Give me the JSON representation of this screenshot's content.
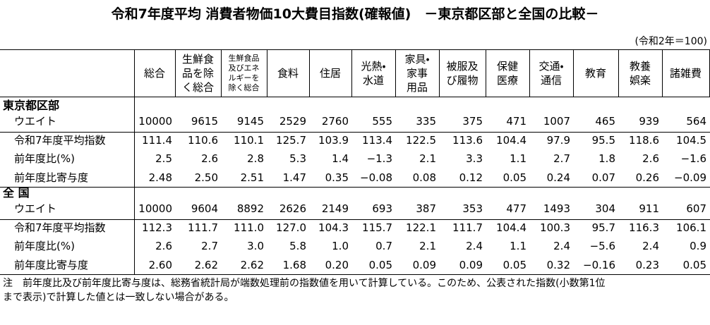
{
  "title": "令和7年度平均 消費者物価10大費目指数(確報値)　－東京都区部と全国の比較－",
  "unit_note": "(令和2年＝100)",
  "table": {
    "columns": [
      [
        "総合"
      ],
      [
        "生鮮食",
        "品を除",
        "く総合"
      ],
      [
        "生鮮食品",
        "及びエネ",
        "ルギーを",
        "除く総合"
      ],
      [
        "食料"
      ],
      [
        "住居"
      ],
      [
        "光熱・",
        "水道"
      ],
      [
        "家具・",
        "家事",
        "用品"
      ],
      [
        "被服及",
        "び履物"
      ],
      [
        "保健",
        "医療"
      ],
      [
        "交通・",
        "通信"
      ],
      [
        "教育"
      ],
      [
        "教養",
        "娯楽"
      ],
      [
        "諸雑費"
      ]
    ],
    "sections": [
      {
        "name": "東京都区部",
        "rows": [
          {
            "label": "ウエイト",
            "values": [
              "10000",
              "9615",
              "9145",
              "2529",
              "2760",
              "555",
              "335",
              "375",
              "471",
              "1007",
              "465",
              "939",
              "564"
            ]
          },
          {
            "label": "令和7年度平均指数",
            "values": [
              "111.4",
              "110.6",
              "110.1",
              "125.7",
              "103.9",
              "113.4",
              "122.5",
              "113.6",
              "104.4",
              "97.9",
              "95.5",
              "118.6",
              "104.5"
            ]
          },
          {
            "label": "前年度比(%)",
            "values": [
              "2.5",
              "2.6",
              "2.8",
              "5.3",
              "1.4",
              "−1.3",
              "2.1",
              "3.3",
              "1.1",
              "2.7",
              "1.8",
              "2.6",
              "−1.6"
            ]
          },
          {
            "label": "前年度比寄与度",
            "values": [
              "2.48",
              "2.50",
              "2.51",
              "1.47",
              "0.35",
              "−0.08",
              "0.08",
              "0.12",
              "0.05",
              "0.24",
              "0.07",
              "0.26",
              "−0.09"
            ]
          }
        ]
      },
      {
        "name": "全 国",
        "rows": [
          {
            "label": "ウエイト",
            "values": [
              "10000",
              "9604",
              "8892",
              "2626",
              "2149",
              "693",
              "387",
              "353",
              "477",
              "1493",
              "304",
              "911",
              "607"
            ]
          },
          {
            "label": "令和7年度平均指数",
            "values": [
              "112.3",
              "111.7",
              "111.0",
              "127.0",
              "104.3",
              "115.7",
              "122.1",
              "111.7",
              "104.4",
              "100.3",
              "95.7",
              "116.3",
              "106.1"
            ]
          },
          {
            "label": "前年度比(%)",
            "values": [
              "2.6",
              "2.7",
              "3.0",
              "5.8",
              "1.0",
              "0.7",
              "2.1",
              "2.4",
              "1.1",
              "2.4",
              "−5.6",
              "2.4",
              "0.9"
            ]
          },
          {
            "label": "前年度比寄与度",
            "values": [
              "2.60",
              "2.62",
              "2.62",
              "1.68",
              "0.20",
              "0.05",
              "0.09",
              "0.09",
              "0.05",
              "0.32",
              "−0.16",
              "0.23",
              "0.05"
            ]
          }
        ]
      }
    ]
  },
  "note": [
    "注　前年度比及び前年度比寄与度は、総務省統計局が端数処理前の指数値を用いて計算している。このため、公表された指数(小数第1位",
    "まで表示)で計算した値とは一致しない場合がある。"
  ]
}
